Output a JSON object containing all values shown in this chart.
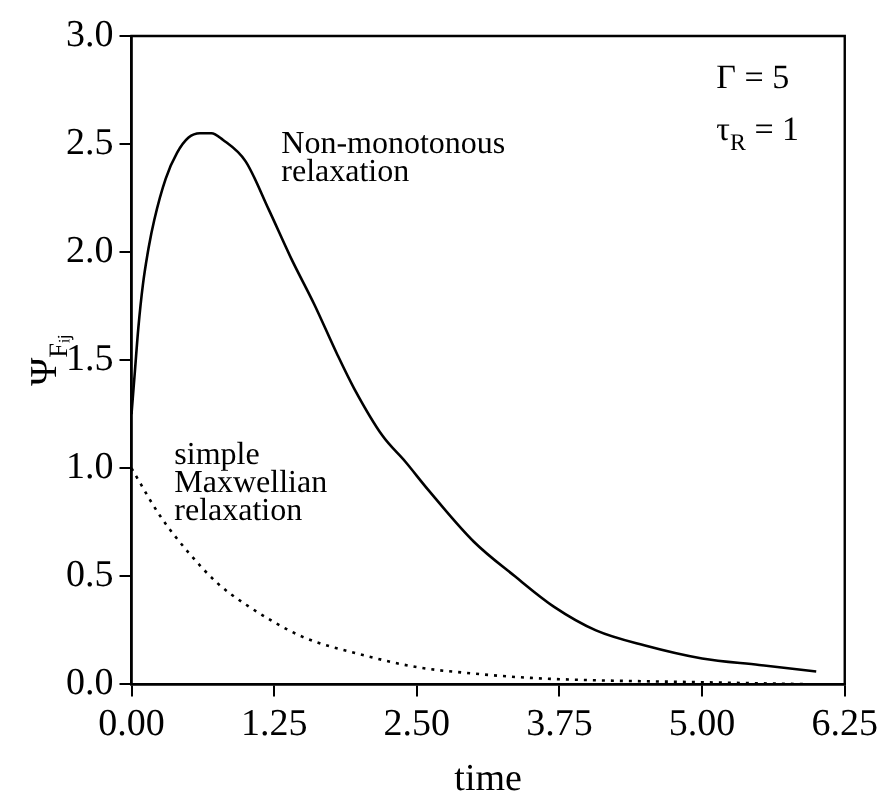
{
  "chart_data": {
    "type": "line",
    "xlabel": "time",
    "ylabel": "Ψ$_{Fᵢⱼ}$",
    "xlim": [
      0,
      6.25
    ],
    "xticks": [
      {
        "value": 0,
        "label": "0.00"
      },
      {
        "value": 1.25,
        "label": "1.25"
      },
      {
        "value": 2.5,
        "label": "2.50"
      },
      {
        "value": 3.75,
        "label": "3.75"
      },
      {
        "value": 5,
        "label": "5.00"
      },
      {
        "value": 6.25,
        "label": "6.25"
      }
    ],
    "ylim": [
      0,
      3
    ],
    "yticks": [
      {
        "value": 0,
        "label": "0.0"
      },
      {
        "value": 0.5,
        "label": "0.5"
      },
      {
        "value": 1,
        "label": "1.0"
      },
      {
        "value": 1.5,
        "label": "1.5"
      },
      {
        "value": 2,
        "label": "2.0"
      },
      {
        "value": 2.5,
        "label": "2.5"
      },
      {
        "value": 3,
        "label": "3.0"
      }
    ],
    "grid": false,
    "legend": false,
    "marker": "none",
    "series": [
      {
        "color": "#000000",
        "line_style": "solid",
        "x": [
          0,
          0.03,
          0.06,
          0.1,
          0.15,
          0.2,
          0.3,
          0.4,
          0.5,
          0.6,
          0.7,
          0.8,
          1.0,
          1.2,
          1.4,
          1.6,
          1.8,
          1.95,
          2.2,
          2.4,
          2.6,
          3.0,
          3.36,
          3.7,
          4.07,
          4.5,
          5.0,
          5.5,
          6.0
        ],
        "values": [
          1.25,
          1.45,
          1.65,
          1.85,
          2.02,
          2.15,
          2.34,
          2.46,
          2.53,
          2.55,
          2.55,
          2.52,
          2.42,
          2.2,
          1.97,
          1.76,
          1.53,
          1.37,
          1.15,
          1.03,
          0.9,
          0.66,
          0.5,
          0.36,
          0.25,
          0.18,
          0.12,
          0.09,
          0.06
        ]
      },
      {
        "color": "#000000",
        "line_style": "dotted",
        "x": [
          0,
          0.25,
          0.5,
          0.75,
          1.0,
          1.5,
          2.0,
          2.5,
          3.0,
          3.5,
          4.0,
          5.0,
          6.0
        ],
        "values": [
          1.0,
          0.78,
          0.61,
          0.47,
          0.37,
          0.22,
          0.14,
          0.08,
          0.05,
          0.03,
          0.02,
          0.01,
          0.0
        ]
      }
    ],
    "annotations": [
      "Γ = 5",
      "τ$_{R}$ = 1",
      "Non-monotonous\nrelaxation",
      "simple\nMaxwellian\nrelaxation"
    ]
  }
}
